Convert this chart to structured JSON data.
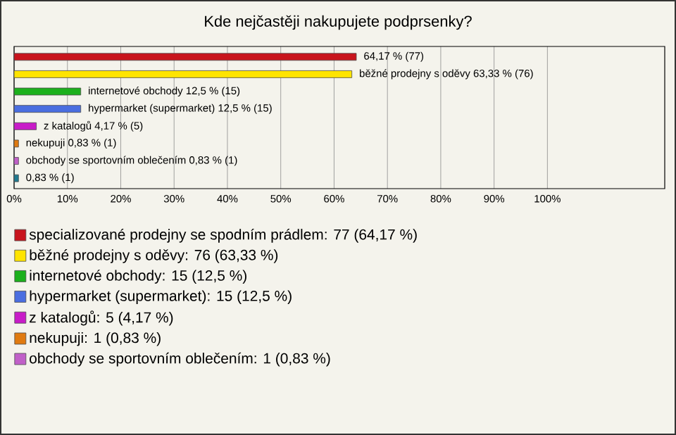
{
  "chart_data": {
    "type": "bar",
    "orientation": "horizontal",
    "title": "Kde nejčastěji nakupujete podprsenky?",
    "categories": [
      null,
      null,
      null,
      null,
      null,
      null,
      null,
      null
    ],
    "series": [
      {
        "name": "specializované prodejny se spodním prádlem: 77 (64,17 %)",
        "color": "#c8141c",
        "values": [
          64.17,
          null,
          null,
          null,
          null,
          null,
          null,
          null
        ],
        "value_labels": [
          "64,17 % (77)",
          null,
          null,
          null,
          null,
          null,
          null,
          null
        ]
      },
      {
        "name": "běžné prodejny s oděvy: 76 (63,33 %)",
        "color": "#ffe400",
        "values": [
          null,
          63.33,
          null,
          null,
          null,
          null,
          null,
          null
        ],
        "value_labels": [
          null,
          "běžné prodejny s oděvy 63,33 % (76)",
          null,
          null,
          null,
          null,
          null,
          null
        ]
      },
      {
        "name": "internetové obchody: 15 (12,5 %)",
        "color": "#1cb01c",
        "values": [
          null,
          null,
          12.5,
          null,
          null,
          null,
          null,
          null
        ],
        "value_labels": [
          null,
          null,
          "internetové obchody 12,5 % (15)",
          null,
          null,
          null,
          null,
          null
        ]
      },
      {
        "name": "hypermarket (supermarket): 15 (12,5 %)",
        "color": "#4a6ee0",
        "values": [
          null,
          null,
          null,
          12.5,
          null,
          null,
          null,
          null
        ],
        "value_labels": [
          null,
          null,
          null,
          "hypermarket (supermarket) 12,5 % (15)",
          null,
          null,
          null,
          null
        ]
      },
      {
        "name": "z katalogů: 5 (4,17 %)",
        "color": "#c81cc8",
        "values": [
          null,
          null,
          null,
          null,
          4.17,
          null,
          null,
          null
        ],
        "value_labels": [
          null,
          null,
          null,
          null,
          "z katalogů 4,17 % (5)",
          null,
          null,
          null
        ]
      },
      {
        "name": "nekupuji: 1 (0,83 %)",
        "color": "#e07a10",
        "values": [
          null,
          null,
          null,
          null,
          null,
          0.83,
          null,
          null
        ],
        "value_labels": [
          null,
          null,
          null,
          null,
          null,
          "nekupuji 0,83 % (1)",
          null,
          null
        ]
      },
      {
        "name": "obchody se sportovním oblečením: 1 (0,83 %)",
        "color": "#c060c8",
        "values": [
          null,
          null,
          null,
          null,
          null,
          null,
          0.83,
          null
        ],
        "value_labels": [
          null,
          null,
          null,
          null,
          null,
          null,
          "obchody se sportovním oblečením 0,83 % (1)",
          null
        ]
      },
      {
        "color": "#207a90",
        "values": [
          null,
          null,
          null,
          null,
          null,
          null,
          null,
          0.83
        ],
        "value_labels": [
          null,
          null,
          null,
          null,
          null,
          null,
          null,
          "0,83 % (1)"
        ]
      }
    ],
    "xlim": [
      0,
      122
    ],
    "xticks": [
      {
        "value": 0,
        "label": "0%"
      },
      {
        "value": 10,
        "label": "10%"
      },
      {
        "value": 20,
        "label": "20%"
      },
      {
        "value": 30,
        "label": "30%"
      },
      {
        "value": 40,
        "label": "40%"
      },
      {
        "value": 50,
        "label": "50%"
      },
      {
        "value": 60,
        "label": "60%"
      },
      {
        "value": 70,
        "label": "70%"
      },
      {
        "value": 80,
        "label": "80%"
      },
      {
        "value": 90,
        "label": "90%"
      },
      {
        "value": 100,
        "label": "100%"
      }
    ],
    "grid": "x",
    "legend": "bottom",
    "tick_labels": "x"
  }
}
